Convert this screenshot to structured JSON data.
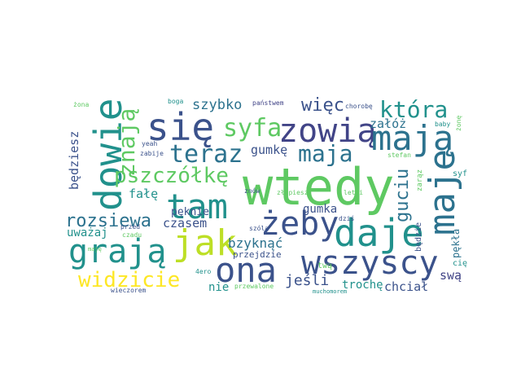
{
  "words": [
    {
      "text": "wtedy",
      "color": "#5ec962"
    },
    {
      "text": "dowie",
      "color": "#21918c"
    },
    {
      "text": "się",
      "color": "#3b528b"
    },
    {
      "text": "zowią",
      "color": "#414487"
    },
    {
      "text": "mają",
      "color": "#2c728e"
    },
    {
      "text": "maje",
      "color": "#2c728e"
    },
    {
      "text": "daje",
      "color": "#21918c"
    },
    {
      "text": "tam",
      "color": "#21918c"
    },
    {
      "text": "grają",
      "color": "#21918c"
    },
    {
      "text": "jak",
      "color": "#bddf26"
    },
    {
      "text": "ona",
      "color": "#3b528b"
    },
    {
      "text": "wszyscy",
      "color": "#3b528b"
    },
    {
      "text": "żeby",
      "color": "#3b528b"
    },
    {
      "text": "teraz",
      "color": "#2c728e"
    },
    {
      "text": "maja",
      "color": "#2c728e"
    },
    {
      "text": "syfa",
      "color": "#5ec962"
    },
    {
      "text": "znają",
      "color": "#5ec962"
    },
    {
      "text": "która",
      "color": "#21918c"
    },
    {
      "text": "pszczółkę",
      "color": "#5ec962"
    },
    {
      "text": "widzicie",
      "color": "#fde725"
    },
    {
      "text": "rozsiewa",
      "color": "#2c728e"
    },
    {
      "text": "guciu",
      "color": "#2c728e"
    },
    {
      "text": "więc",
      "color": "#3b528b"
    },
    {
      "text": "szybko",
      "color": "#2c728e"
    },
    {
      "text": "załóż",
      "color": "#2c728e"
    },
    {
      "text": "gumkę",
      "color": "#3b528b"
    },
    {
      "text": "będziesz",
      "color": "#3b528b"
    },
    {
      "text": "fałę",
      "color": "#21918c"
    },
    {
      "text": "pęknie",
      "color": "#3b528b"
    },
    {
      "text": "czasem",
      "color": "#3b528b"
    },
    {
      "text": "uważaj",
      "color": "#21918c"
    },
    {
      "text": "bzyknąć",
      "color": "#2c728e"
    },
    {
      "text": "gumka",
      "color": "#3b528b"
    },
    {
      "text": "jeśli",
      "color": "#3b528b"
    },
    {
      "text": "nie",
      "color": "#21918c"
    },
    {
      "text": "trochę",
      "color": "#21918c"
    },
    {
      "text": "chciał",
      "color": "#3b528b"
    },
    {
      "text": "swą",
      "color": "#414487"
    },
    {
      "text": "pękła",
      "color": "#2c728e"
    },
    {
      "text": "będzie",
      "color": "#3b528b"
    },
    {
      "text": "przejdzie",
      "color": "#3b528b"
    },
    {
      "text": "twą",
      "color": "#5ec962"
    },
    {
      "text": "cię",
      "color": "#21918c"
    },
    {
      "text": "syf",
      "color": "#21918c"
    },
    {
      "text": "zarąz",
      "color": "#5ec962"
    },
    {
      "text": "baby",
      "color": "#21918c"
    },
    {
      "text": "żonę",
      "color": "#5ec962"
    },
    {
      "text": "chorobę",
      "color": "#3b528b"
    },
    {
      "text": "państwem",
      "color": "#414487"
    },
    {
      "text": "boga",
      "color": "#21918c"
    },
    {
      "text": "żona",
      "color": "#5ec962"
    },
    {
      "text": "yeah",
      "color": "#3b528b"
    },
    {
      "text": "zabije",
      "color": "#3b528b"
    },
    {
      "text": "przed",
      "color": "#3b528b"
    },
    {
      "text": "czadu",
      "color": "#5ec962"
    },
    {
      "text": "maję",
      "color": "#5ec962"
    },
    {
      "text": "znów",
      "color": "#3b528b"
    },
    {
      "text": "złapiesz",
      "color": "#5ec962"
    },
    {
      "text": "letni",
      "color": "#5ec962"
    },
    {
      "text": "stefan",
      "color": "#5ec962"
    },
    {
      "text": "dziś",
      "color": "#3b528b"
    },
    {
      "text": "szóla",
      "color": "#3b528b"
    },
    {
      "text": "przewalone",
      "color": "#5ec962"
    },
    {
      "text": "4ero",
      "color": "#21918c"
    },
    {
      "text": "wieczorem",
      "color": "#3b528b"
    },
    {
      "text": "muchomorem",
      "color": "#21918c"
    }
  ]
}
